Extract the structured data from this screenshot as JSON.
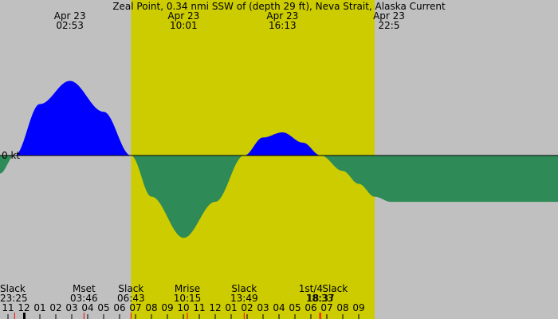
{
  "chart_data": {
    "type": "area",
    "title": "Zeal Point, 0.34 nmi SSW of (depth 29 ft), Neva Strait, Alaska Current",
    "x_unit": "hours",
    "x_start": "-1.5",
    "x_end": "33.5",
    "y_unit": "kt",
    "zero_label": "0 kt",
    "colors": {
      "background": "#c0c0c0",
      "daylight": "#cccc00",
      "flood": "#0000ff",
      "ebb": "#2e8b57",
      "axis": "#000000",
      "tick_marker": "#ff0000"
    },
    "daylight": {
      "start": "6.717",
      "end": "22.0"
    },
    "extremes_top": [
      {
        "date": "Apr 23",
        "time": "02:53",
        "hour": "2.883",
        "value": "2.9"
      },
      {
        "date": "Apr 23",
        "time": "10:01",
        "hour": "10.017",
        "value": "-3.2"
      },
      {
        "date": "Apr 23",
        "time": "16:13",
        "hour": "16.217",
        "value": "0.9"
      },
      {
        "date": "Apr 23",
        "time": "22:5",
        "hour": "22.9",
        "value": "-1.8"
      }
    ],
    "current_series": [
      {
        "hour": "-1.5",
        "value": "-0.7"
      },
      {
        "hour": "-0.583",
        "value": "0"
      },
      {
        "hour": "1.0",
        "value": "2.0"
      },
      {
        "hour": "2.883",
        "value": "2.9"
      },
      {
        "hour": "5.0",
        "value": "1.7"
      },
      {
        "hour": "6.717",
        "value": "0"
      },
      {
        "hour": "8.0",
        "value": "-1.6"
      },
      {
        "hour": "10.017",
        "value": "-3.2"
      },
      {
        "hour": "12.0",
        "value": "-1.8"
      },
      {
        "hour": "13.817",
        "value": "0"
      },
      {
        "hour": "15.0",
        "value": "0.7"
      },
      {
        "hour": "16.217",
        "value": "0.9"
      },
      {
        "hour": "17.5",
        "value": "0.5"
      },
      {
        "hour": "18.617",
        "value": "0"
      },
      {
        "hour": "20.0",
        "value": "-0.6"
      },
      {
        "hour": "21.0",
        "value": "-1.1"
      },
      {
        "hour": "22.0",
        "value": "-1.6"
      },
      {
        "hour": "23.0",
        "value": "-1.8"
      }
    ],
    "events": [
      {
        "label": "Slack",
        "time": "23:25",
        "hour": "-0.583"
      },
      {
        "label": "Mset",
        "time": "03:46",
        "hour": "3.767"
      },
      {
        "label": "Slack",
        "time": "06:43",
        "hour": "6.717"
      },
      {
        "label": "Mrise",
        "time": "10:15",
        "hour": "10.25"
      },
      {
        "label": "Slack",
        "time": "13:49",
        "hour": "13.817"
      },
      {
        "label": "1st/4",
        "time": "18:33",
        "hour": "18.55"
      },
      {
        "label": "Slack",
        "time": "18:37",
        "hour": "18.617"
      }
    ],
    "hour_ticks": [
      "11",
      "12",
      "01",
      "02",
      "03",
      "04",
      "05",
      "06",
      "07",
      "08",
      "09",
      "10",
      "11",
      "12",
      "01",
      "02",
      "03",
      "04",
      "05",
      "06",
      "07",
      "08",
      "09"
    ],
    "midnight_hour": "0",
    "y_scale_kt_per_px": "0.031"
  }
}
